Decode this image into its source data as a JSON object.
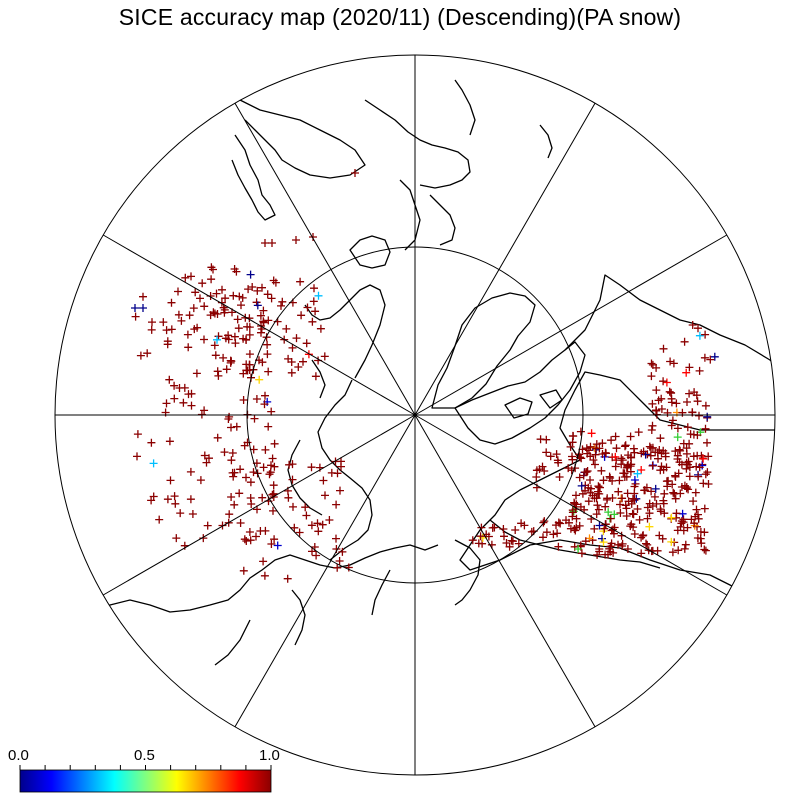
{
  "title": "SICE accuracy map (2020/11) (Descending)(PA snow)",
  "colorbar": {
    "label_min": "0.0",
    "label_mid": "0.5",
    "label_max": "1.0",
    "colors": [
      "#00008b",
      "#0000ff",
      "#0080ff",
      "#00ffff",
      "#80ff80",
      "#ffff00",
      "#ff8000",
      "#ff0000",
      "#8b0000"
    ]
  },
  "map": {
    "projection": "north polar stereographic",
    "graticule": {
      "meridian_spacing_deg": 30,
      "circle_latitude_deg": 60
    },
    "marker": "+",
    "marker_color_dominant": "#8b0000"
  }
}
